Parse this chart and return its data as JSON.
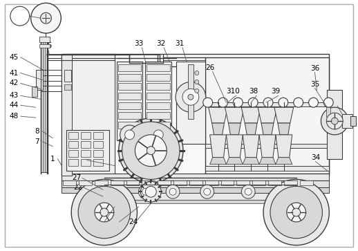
{
  "bg_color": "#ffffff",
  "lc": "#3a3a3a",
  "fc_light": "#f5f5f5",
  "fc_med": "#e8e8e8",
  "fc_dark": "#d5d5d5",
  "figsize": [
    5.18,
    3.63
  ],
  "dpi": 100,
  "label_fs": 7.5
}
